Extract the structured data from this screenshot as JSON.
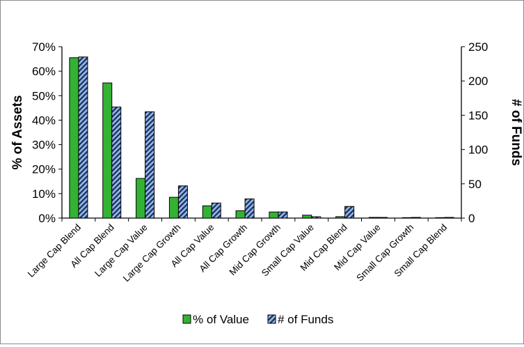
{
  "chart_data": {
    "type": "bar",
    "title": "",
    "categories": [
      "Large Cap Blend",
      "All Cap Blend",
      "Large Cap Value",
      "Large Cap Growth",
      "All Cap Value",
      "All Cap Growth",
      "Mid Cap Growth",
      "Small Cap Value",
      "Mid Cap Blend",
      "Mid Cap Value",
      "Small Cap Growth",
      "Small Cap Blend"
    ],
    "series": [
      {
        "name": "% of Value",
        "axis": "left",
        "values": [
          65.5,
          55.2,
          16.2,
          8.5,
          5.0,
          3.0,
          2.5,
          1.2,
          0.6,
          0.3,
          0.2,
          0.2
        ],
        "color": "#33b233",
        "pattern": "solid"
      },
      {
        "name": "# of Funds",
        "axis": "right",
        "values": [
          235,
          162,
          155,
          47,
          22,
          28,
          9,
          2,
          17,
          1,
          1,
          1
        ],
        "color": "#8fb7e6",
        "pattern": "navy-diagonal-stripes"
      }
    ],
    "ylabel": "% of Assets",
    "ylim": [
      0,
      70
    ],
    "yticks": [
      "0%",
      "10%",
      "20%",
      "30%",
      "40%",
      "50%",
      "60%",
      "70%"
    ],
    "y2label": "# of Funds",
    "y2lim": [
      0,
      250
    ],
    "y2ticks": [
      "0",
      "50",
      "100",
      "150",
      "200",
      "250"
    ],
    "grid": false,
    "legend_position": "bottom"
  }
}
